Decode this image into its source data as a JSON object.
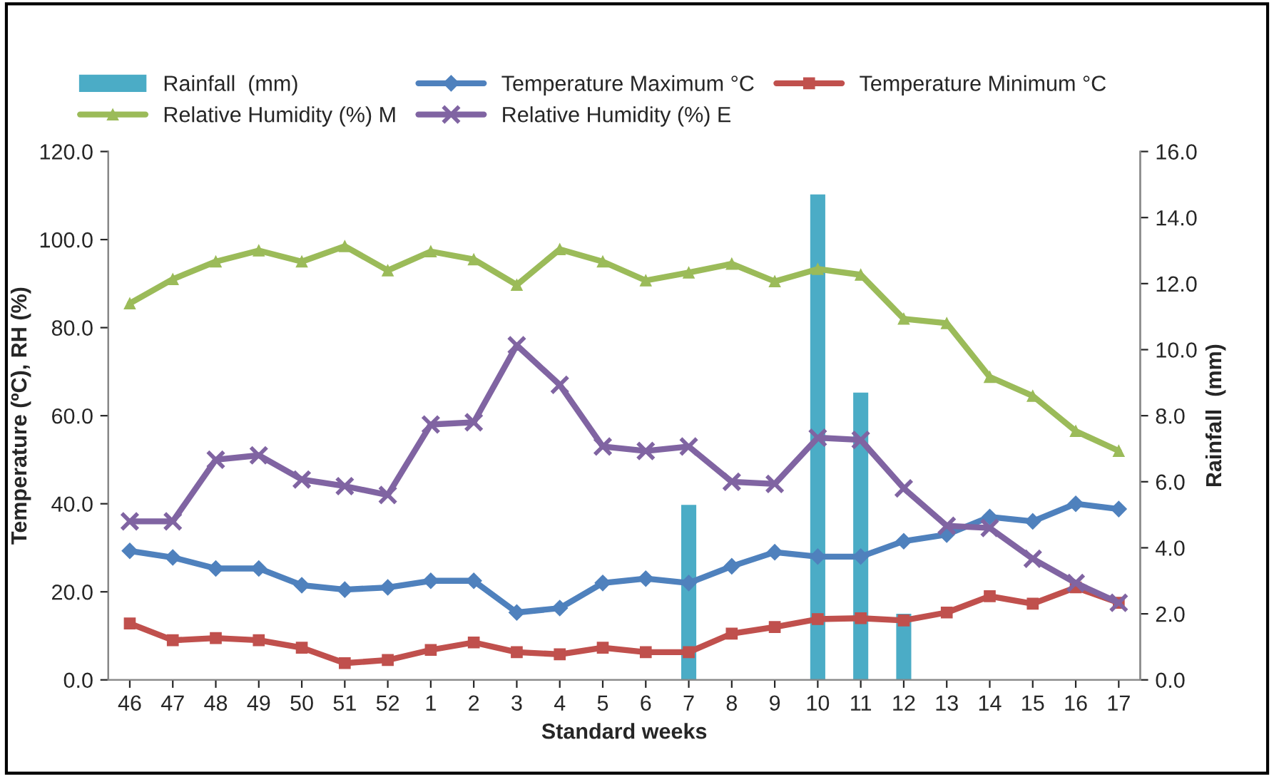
{
  "chart_data": {
    "type": "line",
    "xlabel": "Standard weeks",
    "ylabel": "Temperature (ºC), RH (%)",
    "y2label": "Rainfall  (mm)",
    "categories": [
      "46",
      "47",
      "48",
      "49",
      "50",
      "51",
      "52",
      "1",
      "2",
      "3",
      "4",
      "5",
      "6",
      "7",
      "8",
      "9",
      "10",
      "11",
      "12",
      "13",
      "14",
      "15",
      "16",
      "17"
    ],
    "series": [
      {
        "name": "Rainfall  (mm)",
        "type": "bar",
        "axis": "y2",
        "color": "#4bacc6",
        "values": [
          0,
          0,
          0,
          0,
          0,
          0,
          0,
          0,
          0,
          0,
          0,
          0,
          0,
          5.3,
          0,
          0,
          14.7,
          8.7,
          2.0,
          0,
          0,
          0,
          0,
          0
        ]
      },
      {
        "name": "Temperature Maximum °C",
        "color": "#4f81bd",
        "marker": "diamond",
        "values": [
          29.3,
          27.8,
          25.3,
          25.3,
          21.5,
          20.5,
          21.0,
          22.5,
          22.5,
          15.3,
          16.3,
          22.0,
          23.0,
          22.0,
          25.8,
          29.0,
          28.0,
          28.0,
          31.5,
          33.0,
          37.0,
          36.0,
          40.0,
          38.8
        ]
      },
      {
        "name": "Temperature Minimum °C",
        "color": "#c0504d",
        "marker": "square",
        "values": [
          12.8,
          9.0,
          9.5,
          9.0,
          7.3,
          3.8,
          4.5,
          6.8,
          8.5,
          6.3,
          5.8,
          7.3,
          6.3,
          6.3,
          10.5,
          12.0,
          13.8,
          14.0,
          13.5,
          15.3,
          19.0,
          17.3,
          21.0,
          17.5
        ]
      },
      {
        "name": "Relative Humidity (%) M",
        "color": "#9bbb59",
        "marker": "triangle",
        "values": [
          85.5,
          91.0,
          95.0,
          97.5,
          95.0,
          98.5,
          93.0,
          97.3,
          95.5,
          89.7,
          97.8,
          95.0,
          90.7,
          92.5,
          94.5,
          90.5,
          93.3,
          92.0,
          82.0,
          81.0,
          68.8,
          64.5,
          56.5,
          52.0
        ]
      },
      {
        "name": "Relative Humidity (%) E",
        "color": "#8064a2",
        "marker": "cross",
        "values": [
          36.0,
          36.0,
          50.0,
          51.0,
          45.5,
          44.0,
          42.0,
          58.0,
          58.5,
          76.0,
          67.0,
          53.0,
          52.0,
          53.0,
          45.0,
          44.5,
          55.0,
          54.5,
          43.5,
          35.0,
          34.5,
          27.5,
          22.0,
          17.5
        ]
      }
    ],
    "ylim": [
      0,
      120
    ],
    "yticks": [
      {
        "value": 0,
        "label": "0.0"
      },
      {
        "value": 20,
        "label": "20.0"
      },
      {
        "value": 40,
        "label": "40.0"
      },
      {
        "value": 60,
        "label": "60.0"
      },
      {
        "value": 80,
        "label": "80.0"
      },
      {
        "value": 100,
        "label": "100.0"
      },
      {
        "value": 120,
        "label": "120.0"
      }
    ],
    "y2lim": [
      0,
      16
    ],
    "y2ticks": [
      {
        "value": 0,
        "label": "0.0"
      },
      {
        "value": 2,
        "label": "2.0"
      },
      {
        "value": 4,
        "label": "4.0"
      },
      {
        "value": 6,
        "label": "6.0"
      },
      {
        "value": 8,
        "label": "8.0"
      },
      {
        "value": 10,
        "label": "10.0"
      },
      {
        "value": 12,
        "label": "12.0"
      },
      {
        "value": 14,
        "label": "14.0"
      },
      {
        "value": 16,
        "label": "16.0"
      }
    ],
    "grid": false,
    "legend": "top",
    "line_style": "solid"
  }
}
